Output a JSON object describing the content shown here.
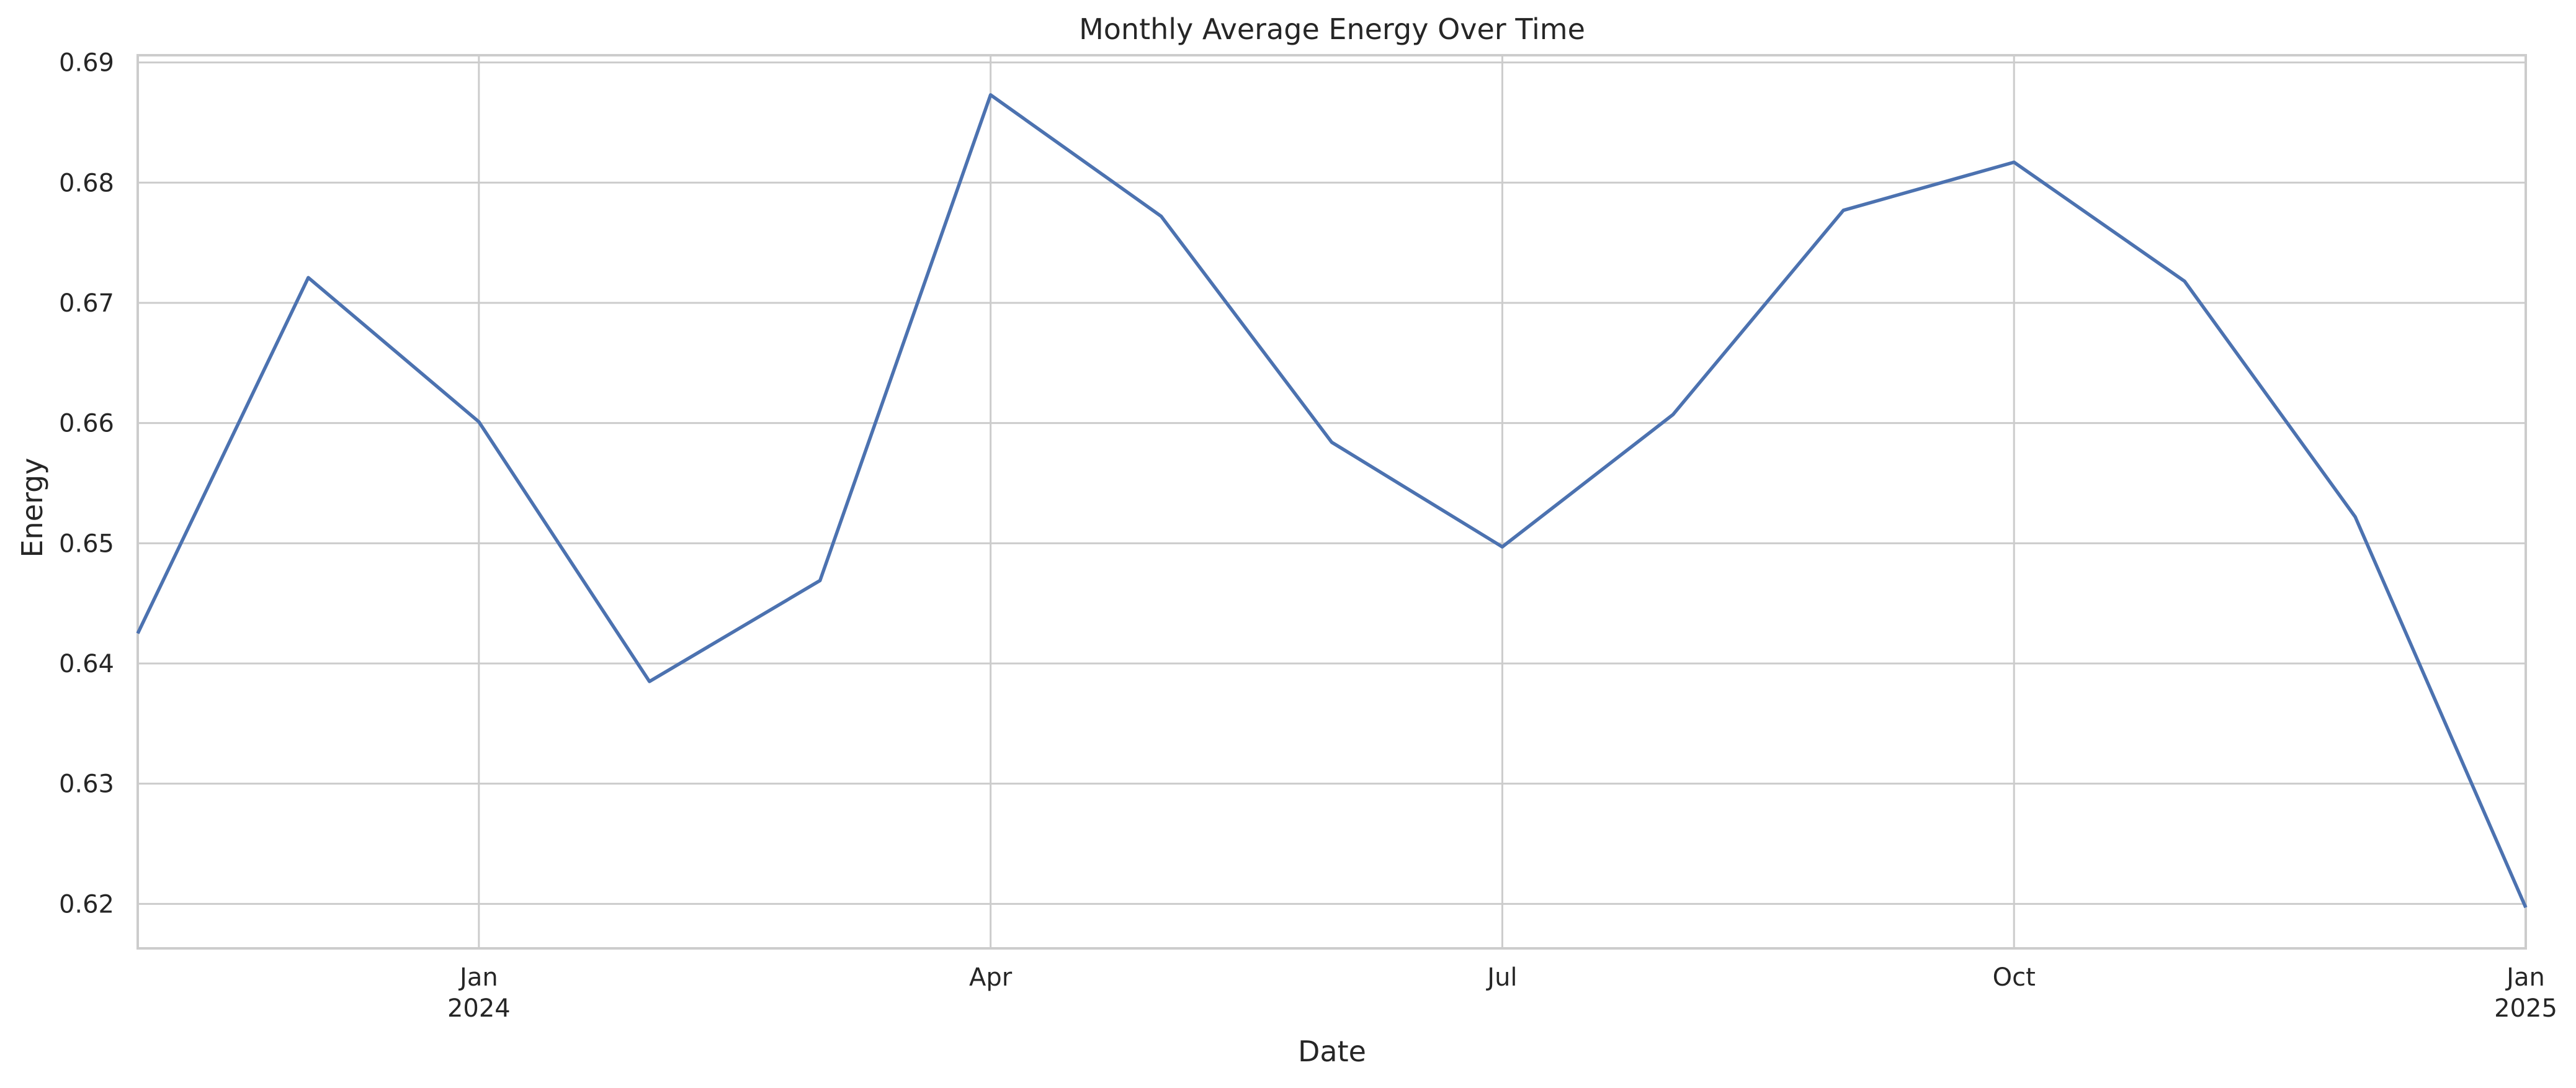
{
  "chart_data": {
    "type": "line",
    "title": "Monthly Average Energy Over Time",
    "xlabel": "Date",
    "ylabel": "Energy",
    "x": [
      "2023-11",
      "2023-12",
      "2024-01",
      "2024-02",
      "2024-03",
      "2024-04",
      "2024-05",
      "2024-06",
      "2024-07",
      "2024-08",
      "2024-09",
      "2024-10",
      "2024-11",
      "2024-12",
      "2025-01"
    ],
    "series": [
      {
        "values": [
          0.6425,
          0.6721,
          0.6601,
          0.6385,
          0.6469,
          0.6873,
          0.6772,
          0.6584,
          0.6497,
          0.6607,
          0.6777,
          0.6817,
          0.6718,
          0.6522,
          0.6197
        ]
      }
    ],
    "xlim": [
      "2023-11",
      "2025-01"
    ],
    "ylim": [
      0.6163,
      0.6906
    ],
    "yticks": [
      0.62,
      0.63,
      0.64,
      0.65,
      0.66,
      0.67,
      0.68,
      0.69
    ],
    "ytick_labels": [
      "0.62",
      "0.63",
      "0.64",
      "0.65",
      "0.66",
      "0.67",
      "0.68",
      "0.69"
    ],
    "xticks_major": [
      {
        "date": "2024-01",
        "label": "Jan",
        "sublabel": "2024"
      },
      {
        "date": "2024-04",
        "label": "Apr",
        "sublabel": ""
      },
      {
        "date": "2024-07",
        "label": "Jul",
        "sublabel": ""
      },
      {
        "date": "2024-10",
        "label": "Oct",
        "sublabel": ""
      },
      {
        "date": "2025-01",
        "label": "Jan",
        "sublabel": "2025"
      }
    ],
    "grid": true,
    "style": {
      "line_color": "#4c72b0",
      "grid_color": "#cccccc",
      "spine_color": "#cccccc",
      "text_color": "#262626",
      "background": "#ffffff"
    }
  }
}
